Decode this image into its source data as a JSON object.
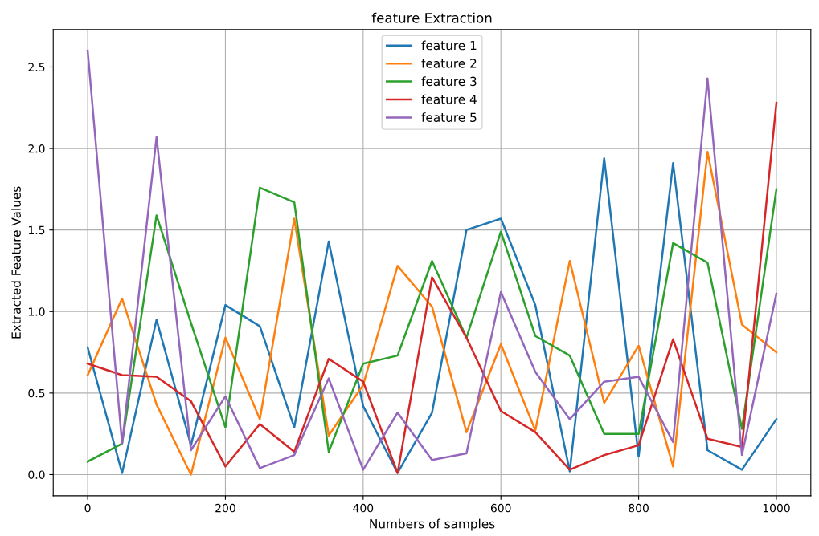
{
  "chart_data": {
    "type": "line",
    "title": "feature Extraction",
    "xlabel": "Numbers of samples",
    "ylabel": "Extracted Feature Values",
    "x": [
      0,
      50,
      100,
      150,
      200,
      250,
      300,
      350,
      400,
      450,
      500,
      550,
      600,
      650,
      700,
      750,
      800,
      850,
      900,
      950,
      1000
    ],
    "series": [
      {
        "name": "feature 1",
        "color": "#1f77b4",
        "values": [
          0.78,
          0.01,
          0.95,
          0.18,
          1.04,
          0.91,
          0.29,
          1.43,
          0.42,
          0.01,
          0.38,
          1.5,
          1.57,
          1.04,
          0.02,
          1.94,
          0.11,
          1.91,
          0.15,
          0.03,
          0.34
        ]
      },
      {
        "name": "feature 2",
        "color": "#ff7f0e",
        "values": [
          0.61,
          1.08,
          0.43,
          0.0,
          0.84,
          0.34,
          1.57,
          0.24,
          0.55,
          1.28,
          1.03,
          0.26,
          0.8,
          0.27,
          1.31,
          0.44,
          0.79,
          0.05,
          1.98,
          0.92,
          0.75
        ]
      },
      {
        "name": "feature 3",
        "color": "#2ca02c",
        "values": [
          0.08,
          0.19,
          1.59,
          0.93,
          0.29,
          1.76,
          1.67,
          0.14,
          0.68,
          0.73,
          1.31,
          0.84,
          1.49,
          0.85,
          0.73,
          0.25,
          0.25,
          1.42,
          1.3,
          0.28,
          1.75
        ]
      },
      {
        "name": "feature 4",
        "color": "#d62728",
        "values": [
          0.68,
          0.61,
          0.6,
          0.45,
          0.05,
          0.31,
          0.14,
          0.71,
          0.57,
          0.01,
          1.21,
          0.84,
          0.39,
          0.26,
          0.03,
          0.12,
          0.18,
          0.83,
          0.22,
          0.17,
          2.28
        ]
      },
      {
        "name": "feature 5",
        "color": "#9467bd",
        "values": [
          2.6,
          0.19,
          2.07,
          0.15,
          0.48,
          0.04,
          0.12,
          0.59,
          0.03,
          0.38,
          0.09,
          0.13,
          1.12,
          0.63,
          0.34,
          0.57,
          0.6,
          0.2,
          2.43,
          0.12,
          1.11
        ]
      }
    ],
    "xlim": [
      -50,
      1050
    ],
    "xticks": [
      0,
      200,
      400,
      600,
      800,
      1000
    ],
    "ylim": [
      -0.13,
      2.73
    ],
    "yticks": [
      {
        "value": 0,
        "label": "0.0"
      },
      {
        "value": 0.5,
        "label": "0.5"
      },
      {
        "value": 1,
        "label": "1.0"
      },
      {
        "value": 1.5,
        "label": "1.5"
      },
      {
        "value": 2,
        "label": "2.0"
      },
      {
        "value": 2.5,
        "label": "2.5"
      }
    ],
    "grid": true,
    "legend": "top",
    "marker": "none",
    "line_style": "solid"
  }
}
